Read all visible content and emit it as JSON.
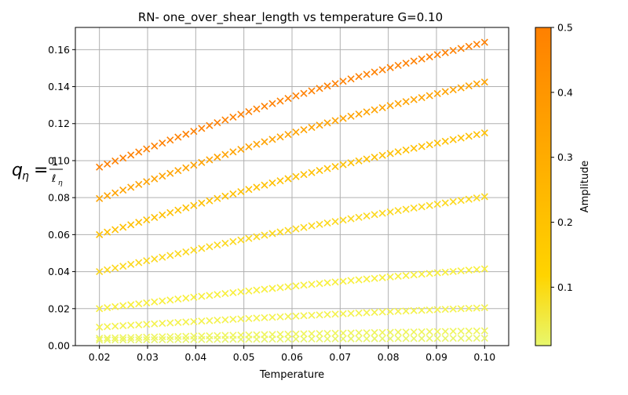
{
  "chart_data": {
    "type": "scatter",
    "title": "RN- one_over_shear_length vs temperature G=0.10",
    "xlabel": "Temperature",
    "ylabel": "q_η = 1/ℓ_η",
    "xlim": [
      0.015,
      0.105
    ],
    "ylim": [
      0,
      0.172
    ],
    "xticks": [
      "0.02",
      "0.03",
      "0.04",
      "0.05",
      "0.06",
      "0.07",
      "0.08",
      "0.09",
      "0.10"
    ],
    "yticks": [
      "0.00",
      "0.02",
      "0.04",
      "0.06",
      "0.08",
      "0.10",
      "0.12",
      "0.14",
      "0.16"
    ],
    "grid": true,
    "marker": "x",
    "x_range": [
      0.02,
      0.1
    ],
    "points_per_series": 50,
    "series": [
      {
        "amplitude": 0.015,
        "color": "#e9f56a",
        "start": 0.003,
        "end": 0.004
      },
      {
        "amplitude": 0.02,
        "color": "#eff55c",
        "start": 0.004,
        "end": 0.008
      },
      {
        "amplitude": 0.05,
        "color": "#f4f24c",
        "start": 0.01,
        "end": 0.0205
      },
      {
        "amplitude": 0.1,
        "color": "#f8ef3a",
        "start": 0.02,
        "end": 0.0415
      },
      {
        "amplitude": 0.2,
        "color": "#fcd81c",
        "start": 0.04,
        "end": 0.0805
      },
      {
        "amplitude": 0.3,
        "color": "#ffc000",
        "start": 0.06,
        "end": 0.115
      },
      {
        "amplitude": 0.4,
        "color": "#ffa300",
        "start": 0.0795,
        "end": 0.1425
      },
      {
        "amplitude": 0.5,
        "color": "#ff8000",
        "start": 0.0965,
        "end": 0.164
      }
    ],
    "colorbar": {
      "label": "Amplitude",
      "min": 0.01,
      "max": 0.5,
      "ticks": [
        "0.1",
        "0.2",
        "0.3",
        "0.4",
        "0.5"
      ],
      "tick_values": [
        0.1,
        0.2,
        0.3,
        0.4,
        0.5
      ],
      "color_low": "#e8f76c",
      "color_mid": "#ffd400",
      "color_high": "#ff8000"
    }
  }
}
